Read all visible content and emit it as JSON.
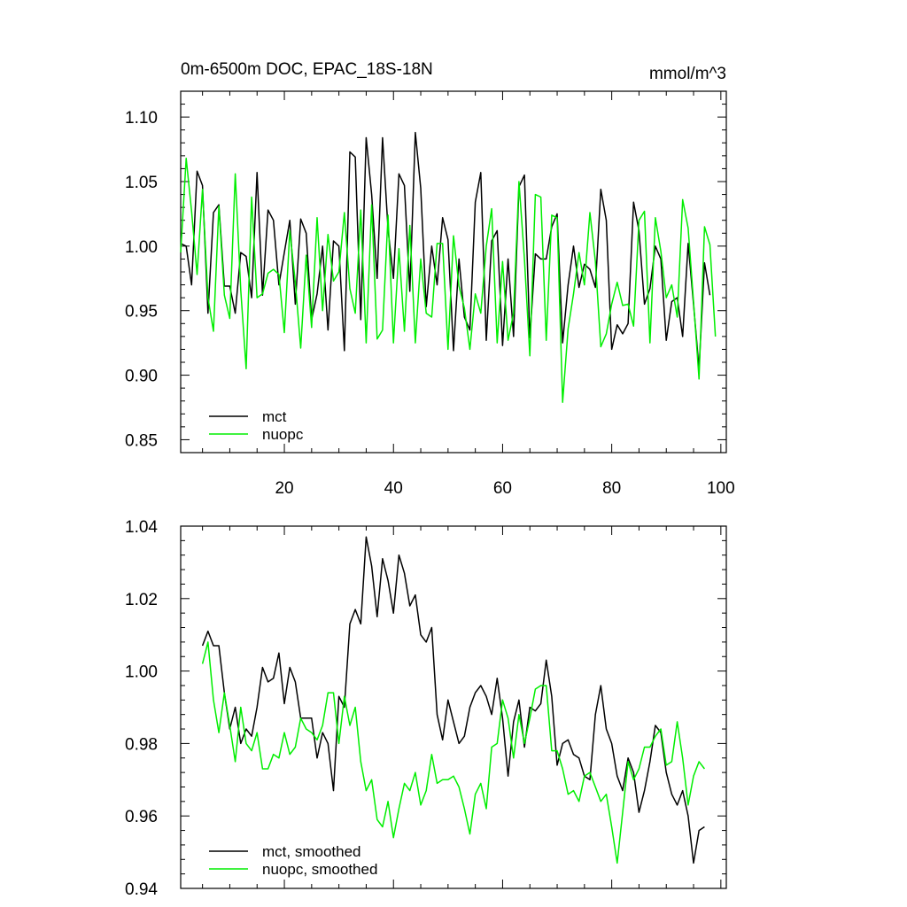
{
  "chart_data": [
    {
      "type": "line",
      "title": "0m-6500m DOC, EPAC_18S-18N",
      "units": "mmol/m^3",
      "xlim": [
        1,
        101
      ],
      "ylim": [
        0.84,
        1.12
      ],
      "x_ticks": [
        20,
        40,
        60,
        80,
        100
      ],
      "y_ticks": [
        0.85,
        0.9,
        0.95,
        1.0,
        1.05,
        1.1
      ],
      "y_tick_labels": [
        "0.85",
        "0.90",
        "0.95",
        "1.00",
        "1.05",
        "1.10"
      ],
      "legend_position": "bottom-left",
      "series": [
        {
          "name": "mct",
          "color": "#000000",
          "x_start": 1,
          "values": [
            1.002,
            1.0,
            0.97,
            1.058,
            1.047,
            0.948,
            1.026,
            1.032,
            0.969,
            0.969,
            0.948,
            0.995,
            0.992,
            0.96,
            1.057,
            0.962,
            1.028,
            1.02,
            0.97,
            0.995,
            1.02,
            0.955,
            1.021,
            1.01,
            0.943,
            0.963,
            1.0,
            0.935,
            1.004,
            1.0,
            0.919,
            1.073,
            1.069,
            0.943,
            1.084,
            1.04,
            0.975,
            1.084,
            1.013,
            0.975,
            1.056,
            1.047,
            0.965,
            1.088,
            1.045,
            0.953,
            1.0,
            0.97,
            1.022,
            1.005,
            0.919,
            0.99,
            0.945,
            0.935,
            1.034,
            1.057,
            0.927,
            1.004,
            1.012,
            0.923,
            0.99,
            0.93,
            1.046,
            1.055,
            0.929,
            0.994,
            0.99,
            0.99,
            1.015,
            1.025,
            0.925,
            0.97,
            1.0,
            0.968,
            0.986,
            0.982,
            0.968,
            1.044,
            1.02,
            0.92,
            0.939,
            0.932,
            0.94,
            1.034,
            1.012,
            0.955,
            0.967,
            1.0,
            0.99,
            0.927,
            0.957,
            0.96,
            0.93,
            1.002,
            0.955,
            0.905,
            0.987,
            0.962
          ]
        },
        {
          "name": "nuopc",
          "color": "#00ee00",
          "x_start": 1,
          "values": [
            0.995,
            1.068,
            1.027,
            0.978,
            1.044,
            0.96,
            0.934,
            1.031,
            0.962,
            0.944,
            1.056,
            0.966,
            0.905,
            1.038,
            0.96,
            0.963,
            0.979,
            0.982,
            0.978,
            0.933,
            1.012,
            0.972,
            0.921,
            0.993,
            0.937,
            1.022,
            0.95,
            1.009,
            0.973,
            0.98,
            1.026,
            0.967,
            0.948,
            1.028,
            0.925,
            1.032,
            0.928,
            0.935,
            1.024,
            0.925,
            0.998,
            0.934,
            1.016,
            0.925,
            0.99,
            0.948,
            0.945,
            1.002,
            1.002,
            0.92,
            1.008,
            0.969,
            0.952,
            0.92,
            0.963,
            0.948,
            1.0,
            1.029,
            0.925,
            0.988,
            0.927,
            0.948,
            1.05,
            0.99,
            0.915,
            1.04,
            1.038,
            0.927,
            1.024,
            1.022,
            0.879,
            0.936,
            0.963,
            0.995,
            0.97,
            1.026,
            0.988,
            0.922,
            0.932,
            0.955,
            0.972,
            0.954,
            0.955,
            0.938,
            1.02,
            1.027,
            0.925,
            1.022,
            0.996,
            0.96,
            0.97,
            0.945,
            1.036,
            1.014,
            0.957,
            0.897,
            1.015,
            1.001,
            0.93
          ]
        }
      ]
    },
    {
      "type": "line",
      "xlim": [
        1,
        101
      ],
      "ylim": [
        0.94,
        1.04
      ],
      "x_ticks": [
        20,
        40,
        60,
        80,
        100
      ],
      "y_ticks": [
        0.94,
        0.96,
        0.98,
        1.0,
        1.02,
        1.04
      ],
      "y_tick_labels": [
        "0.94",
        "0.96",
        "0.98",
        "1.00",
        "1.02",
        "1.04"
      ],
      "legend_position": "bottom-left",
      "series": [
        {
          "name": "mct, smoothed",
          "color": "#000000",
          "x_start": 5,
          "values": [
            1.007,
            1.011,
            1.007,
            1.007,
            0.994,
            0.984,
            0.99,
            0.98,
            0.984,
            0.982,
            0.99,
            1.001,
            0.997,
            0.998,
            1.005,
            0.991,
            1.001,
            0.997,
            0.987,
            0.987,
            0.987,
            0.976,
            0.983,
            0.98,
            0.967,
            0.993,
            0.99,
            1.013,
            1.017,
            1.013,
            1.037,
            1.029,
            1.015,
            1.031,
            1.025,
            1.016,
            1.032,
            1.027,
            1.018,
            1.021,
            1.01,
            1.008,
            1.012,
            0.988,
            0.981,
            0.992,
            0.986,
            0.98,
            0.982,
            0.99,
            0.994,
            0.996,
            0.993,
            0.988,
            0.998,
            0.987,
            0.971,
            0.986,
            0.992,
            0.979,
            0.99,
            0.989,
            0.991,
            1.003,
            0.993,
            0.974,
            0.98,
            0.981,
            0.977,
            0.976,
            0.971,
            0.97,
            0.988,
            0.996,
            0.984,
            0.98,
            0.971,
            0.967,
            0.976,
            0.972,
            0.961,
            0.967,
            0.975,
            0.985,
            0.983,
            0.972,
            0.966,
            0.963,
            0.967,
            0.96,
            0.947,
            0.956,
            0.957
          ]
        },
        {
          "name": "nuopc, smoothed",
          "color": "#00ee00",
          "x_start": 5,
          "values": [
            1.002,
            1.008,
            0.992,
            0.983,
            0.994,
            0.985,
            0.975,
            0.99,
            0.98,
            0.978,
            0.983,
            0.973,
            0.973,
            0.977,
            0.976,
            0.983,
            0.977,
            0.979,
            0.987,
            0.984,
            0.983,
            0.981,
            0.985,
            0.994,
            0.994,
            0.98,
            0.993,
            0.985,
            0.99,
            0.975,
            0.967,
            0.97,
            0.959,
            0.957,
            0.964,
            0.954,
            0.962,
            0.969,
            0.967,
            0.972,
            0.963,
            0.967,
            0.977,
            0.969,
            0.97,
            0.97,
            0.971,
            0.968,
            0.962,
            0.955,
            0.966,
            0.969,
            0.962,
            0.979,
            0.98,
            0.992,
            0.987,
            0.976,
            0.988,
            0.98,
            0.987,
            0.995,
            0.996,
            0.996,
            0.978,
            0.978,
            0.973,
            0.966,
            0.967,
            0.964,
            0.971,
            0.972,
            0.968,
            0.964,
            0.966,
            0.957,
            0.947,
            0.961,
            0.975,
            0.97,
            0.973,
            0.979,
            0.979,
            0.982,
            0.984,
            0.974,
            0.975,
            0.986,
            0.976,
            0.963,
            0.971,
            0.975,
            0.973
          ]
        }
      ]
    }
  ]
}
